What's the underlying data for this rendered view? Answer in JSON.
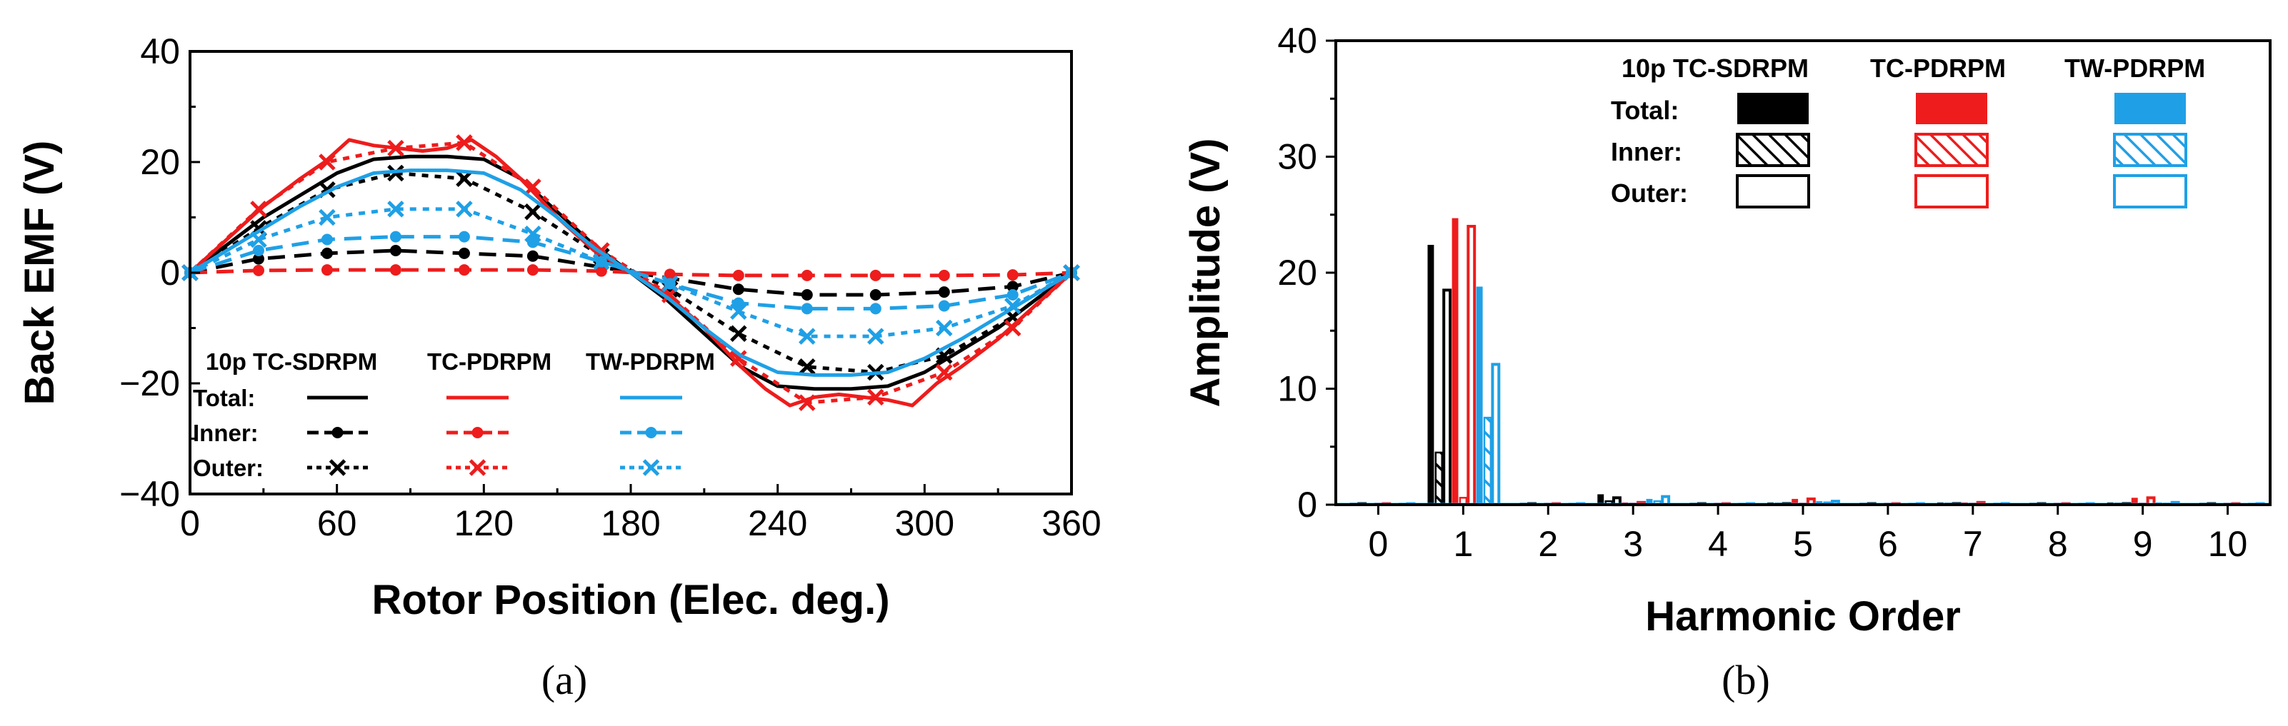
{
  "colors": {
    "tc_sdrpm": "#000000",
    "tc_pdrpm": "#ee1c1c",
    "tw_pdrpm": "#1fa0e6"
  },
  "chart_data": [
    {
      "id": "a",
      "type": "line",
      "caption": "(a)",
      "xlabel": "Rotor Position (Elec. deg.)",
      "ylabel": "Back EMF (V)",
      "xlim": [
        0,
        360
      ],
      "ylim": [
        -40,
        40
      ],
      "xticks": [
        0,
        60,
        120,
        180,
        240,
        300,
        360
      ],
      "yticks": [
        -40,
        -20,
        0,
        20,
        40
      ],
      "yticklabels": [
        "−40",
        "−20",
        "0",
        "20",
        "40"
      ],
      "legend": {
        "headers": [
          "10p TC-SDRPM",
          "TC-PDRPM",
          "TW-PDRPM"
        ],
        "rows": [
          "Total:",
          "Inner:",
          "Outer:"
        ]
      },
      "marker_x": [
        0,
        28,
        56,
        84,
        112,
        140,
        168,
        196,
        224,
        252,
        280,
        308,
        336,
        360
      ],
      "series": [
        {
          "machine": "10p TC-SDRPM",
          "component": "Total",
          "style": "solid",
          "marker": "none",
          "color_key": "tc_sdrpm",
          "x": [
            0,
            15,
            30,
            45,
            60,
            75,
            90,
            105,
            120,
            135,
            150,
            165,
            180,
            195,
            210,
            225,
            240,
            255,
            270,
            285,
            300,
            315,
            330,
            345,
            360
          ],
          "y": [
            0,
            5,
            10,
            14,
            18,
            20.5,
            21,
            21,
            20.5,
            17,
            11,
            5,
            0,
            -5,
            -11,
            -17,
            -20.5,
            -21,
            -21,
            -20.5,
            -18,
            -14,
            -10,
            -5,
            0
          ]
        },
        {
          "machine": "10p TC-SDRPM",
          "component": "Inner",
          "style": "dashed",
          "marker": "dot",
          "color_key": "tc_sdrpm",
          "x": [
            0,
            28,
            56,
            84,
            112,
            140,
            168,
            196,
            224,
            252,
            280,
            308,
            336,
            360
          ],
          "y": [
            0,
            2.5,
            3.5,
            4,
            3.5,
            3,
            1,
            -1,
            -3,
            -4,
            -4,
            -3.5,
            -2.5,
            0
          ]
        },
        {
          "machine": "10p TC-SDRPM",
          "component": "Outer",
          "style": "dotted",
          "marker": "x",
          "color_key": "tc_sdrpm",
          "x": [
            0,
            28,
            56,
            84,
            112,
            140,
            168,
            196,
            224,
            252,
            280,
            308,
            336,
            360
          ],
          "y": [
            0,
            8,
            15,
            18,
            17,
            11,
            3,
            -3,
            -11,
            -17,
            -18,
            -15,
            -8,
            0
          ]
        },
        {
          "machine": "TC-PDRPM",
          "component": "Total",
          "style": "solid",
          "marker": "none",
          "color_key": "tc_pdrpm",
          "x": [
            0,
            15,
            30,
            45,
            55,
            65,
            75,
            85,
            95,
            105,
            115,
            125,
            135,
            150,
            165,
            180,
            195,
            210,
            225,
            235,
            245,
            255,
            265,
            275,
            285,
            295,
            305,
            315,
            330,
            345,
            360
          ],
          "y": [
            0,
            6,
            12,
            17,
            20,
            24,
            23,
            22.5,
            22,
            22.5,
            24,
            21,
            17,
            10,
            4,
            0,
            -4,
            -10,
            -17,
            -21,
            -24,
            -22.5,
            -22,
            -22.5,
            -23,
            -24,
            -20,
            -17,
            -12,
            -6,
            0
          ]
        },
        {
          "machine": "TC-PDRPM",
          "component": "Inner",
          "style": "dashed",
          "marker": "dot",
          "color_key": "tc_pdrpm",
          "x": [
            0,
            28,
            56,
            84,
            112,
            140,
            168,
            196,
            224,
            252,
            280,
            308,
            336,
            360
          ],
          "y": [
            0,
            0.4,
            0.5,
            0.5,
            0.5,
            0.5,
            0.3,
            -0.3,
            -0.5,
            -0.5,
            -0.5,
            -0.5,
            -0.4,
            0
          ]
        },
        {
          "machine": "TC-PDRPM",
          "component": "Outer",
          "style": "dotted",
          "marker": "x",
          "color_key": "tc_pdrpm",
          "x": [
            0,
            28,
            56,
            84,
            112,
            140,
            168,
            196,
            224,
            252,
            280,
            308,
            336,
            360
          ],
          "y": [
            0,
            11.5,
            20,
            22.5,
            23.5,
            15.5,
            4,
            -4,
            -15.5,
            -23.5,
            -22.5,
            -18,
            -10,
            0
          ]
        },
        {
          "machine": "TW-PDRPM",
          "component": "Total",
          "style": "solid",
          "marker": "none",
          "color_key": "tw_pdrpm",
          "x": [
            0,
            15,
            30,
            45,
            60,
            75,
            90,
            105,
            120,
            135,
            150,
            165,
            180,
            195,
            210,
            225,
            240,
            255,
            270,
            285,
            300,
            315,
            330,
            345,
            360
          ],
          "y": [
            0,
            4,
            8,
            12,
            15.5,
            18,
            18.5,
            18.5,
            18,
            15,
            10,
            4.5,
            0,
            -4.5,
            -10,
            -15,
            -18,
            -18.5,
            -18.5,
            -18,
            -15.5,
            -12,
            -8,
            -4,
            0
          ]
        },
        {
          "machine": "TW-PDRPM",
          "component": "Inner",
          "style": "dashed",
          "marker": "dot",
          "color_key": "tw_pdrpm",
          "x": [
            0,
            28,
            56,
            84,
            112,
            140,
            168,
            196,
            224,
            252,
            280,
            308,
            336,
            360
          ],
          "y": [
            0,
            4,
            6,
            6.5,
            6.5,
            5.5,
            2,
            -2,
            -5.5,
            -6.5,
            -6.5,
            -6,
            -4,
            0
          ]
        },
        {
          "machine": "TW-PDRPM",
          "component": "Outer",
          "style": "dotted",
          "marker": "x",
          "color_key": "tw_pdrpm",
          "x": [
            0,
            28,
            56,
            84,
            112,
            140,
            168,
            196,
            224,
            252,
            280,
            308,
            336,
            360
          ],
          "y": [
            0,
            6,
            10,
            11.5,
            11.5,
            7,
            2,
            -2,
            -7,
            -11.5,
            -11.5,
            -10,
            -6,
            0
          ]
        }
      ]
    },
    {
      "id": "b",
      "type": "bar",
      "caption": "(b)",
      "xlabel": "Harmonic Order",
      "ylabel": "Amplitude (V)",
      "xlim": [
        -0.5,
        10.5
      ],
      "ylim": [
        0,
        40
      ],
      "xticks": [
        0,
        1,
        2,
        3,
        4,
        5,
        6,
        7,
        8,
        9,
        10
      ],
      "yticks": [
        0,
        10,
        20,
        30,
        40
      ],
      "legend": {
        "headers": [
          "10p TC-SDRPM",
          "TC-PDRPM",
          "TW-PDRPM"
        ],
        "rows": [
          "Total:",
          "Inner:",
          "Outer:"
        ]
      },
      "series": [
        {
          "machine": "10p TC-SDRPM",
          "component": "Total",
          "fill": "solid",
          "color_key": "tc_sdrpm",
          "values": [
            0,
            22.4,
            0,
            0.9,
            0,
            0.2,
            0,
            0.2,
            0,
            0.2,
            0
          ]
        },
        {
          "machine": "10p TC-SDRPM",
          "component": "Inner",
          "fill": "hatched",
          "color_key": "tc_sdrpm",
          "values": [
            0,
            4.5,
            0,
            0.3,
            0,
            0.1,
            0,
            0.1,
            0,
            0.1,
            0
          ]
        },
        {
          "machine": "10p TC-SDRPM",
          "component": "Outer",
          "fill": "outline",
          "color_key": "tc_sdrpm",
          "values": [
            0,
            18.5,
            0,
            0.6,
            0,
            0.1,
            0,
            0.1,
            0,
            0.1,
            0
          ]
        },
        {
          "machine": "TC-PDRPM",
          "component": "Total",
          "fill": "solid",
          "color_key": "tc_pdrpm",
          "values": [
            0,
            24.7,
            0,
            0.2,
            0,
            0.5,
            0,
            0.2,
            0,
            0.6,
            0
          ]
        },
        {
          "machine": "TC-PDRPM",
          "component": "Inner",
          "fill": "hatched",
          "color_key": "tc_pdrpm",
          "values": [
            0,
            0.6,
            0,
            0.1,
            0,
            0.1,
            0,
            0.1,
            0,
            0.1,
            0
          ]
        },
        {
          "machine": "TC-PDRPM",
          "component": "Outer",
          "fill": "outline",
          "color_key": "tc_pdrpm",
          "values": [
            0,
            24.0,
            0,
            0.2,
            0,
            0.5,
            0,
            0.2,
            0,
            0.6,
            0
          ]
        },
        {
          "machine": "TW-PDRPM",
          "component": "Total",
          "fill": "solid",
          "color_key": "tw_pdrpm",
          "values": [
            0,
            18.8,
            0,
            0.5,
            0,
            0.3,
            0,
            0.1,
            0,
            0.2,
            0
          ]
        },
        {
          "machine": "TW-PDRPM",
          "component": "Inner",
          "fill": "hatched",
          "color_key": "tw_pdrpm",
          "values": [
            0,
            7.5,
            0,
            0.3,
            0,
            0.2,
            0,
            0.1,
            0,
            0.1,
            0
          ]
        },
        {
          "machine": "TW-PDRPM",
          "component": "Outer",
          "fill": "outline",
          "color_key": "tw_pdrpm",
          "values": [
            0,
            12.1,
            0,
            0.7,
            0,
            0.3,
            0,
            0.1,
            0,
            0.2,
            0
          ]
        }
      ]
    }
  ]
}
